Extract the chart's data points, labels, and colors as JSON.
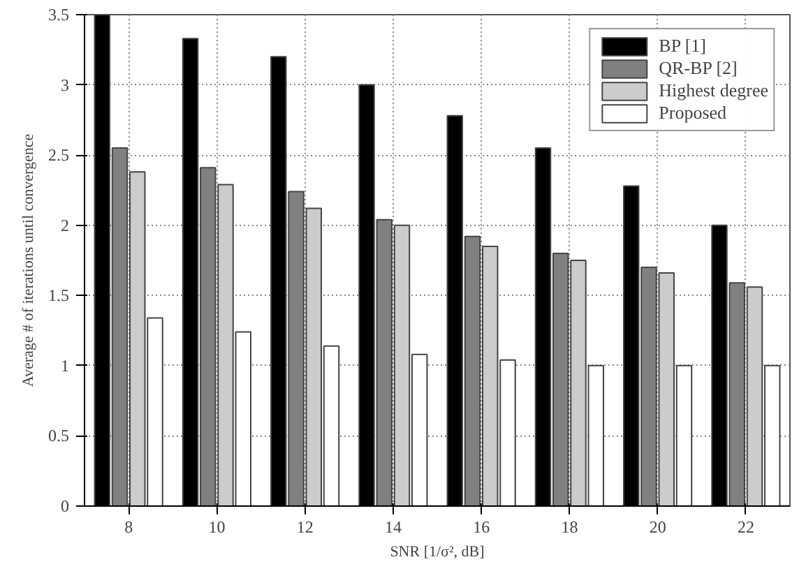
{
  "chart_data": {
    "type": "bar",
    "xlabel": "SNR [1/σ², dB]",
    "ylabel": "Average # of iterations until convergence",
    "categories": [
      "8",
      "10",
      "12",
      "14",
      "16",
      "18",
      "20",
      "22"
    ],
    "series": [
      {
        "name": "BP [1]",
        "color": "#000000",
        "values": [
          3.5,
          3.33,
          3.2,
          3.0,
          2.78,
          2.55,
          2.28,
          2.0
        ]
      },
      {
        "name": "QR-BP [2]",
        "color": "#808080",
        "values": [
          2.55,
          2.41,
          2.24,
          2.04,
          1.92,
          1.8,
          1.7,
          1.59
        ]
      },
      {
        "name": "Highest degree",
        "color": "#cccccc",
        "values": [
          2.38,
          2.29,
          2.12,
          2.0,
          1.85,
          1.75,
          1.66,
          1.56
        ]
      },
      {
        "name": "Proposed",
        "color": "#ffffff",
        "values": [
          1.34,
          1.24,
          1.14,
          1.08,
          1.04,
          1.0,
          1.0,
          1.0
        ]
      }
    ],
    "ylim": [
      0,
      3.5
    ],
    "yticks": [
      0,
      0.5,
      1,
      1.5,
      2,
      2.5,
      3,
      3.5
    ],
    "grid": true,
    "legend": "top right"
  }
}
